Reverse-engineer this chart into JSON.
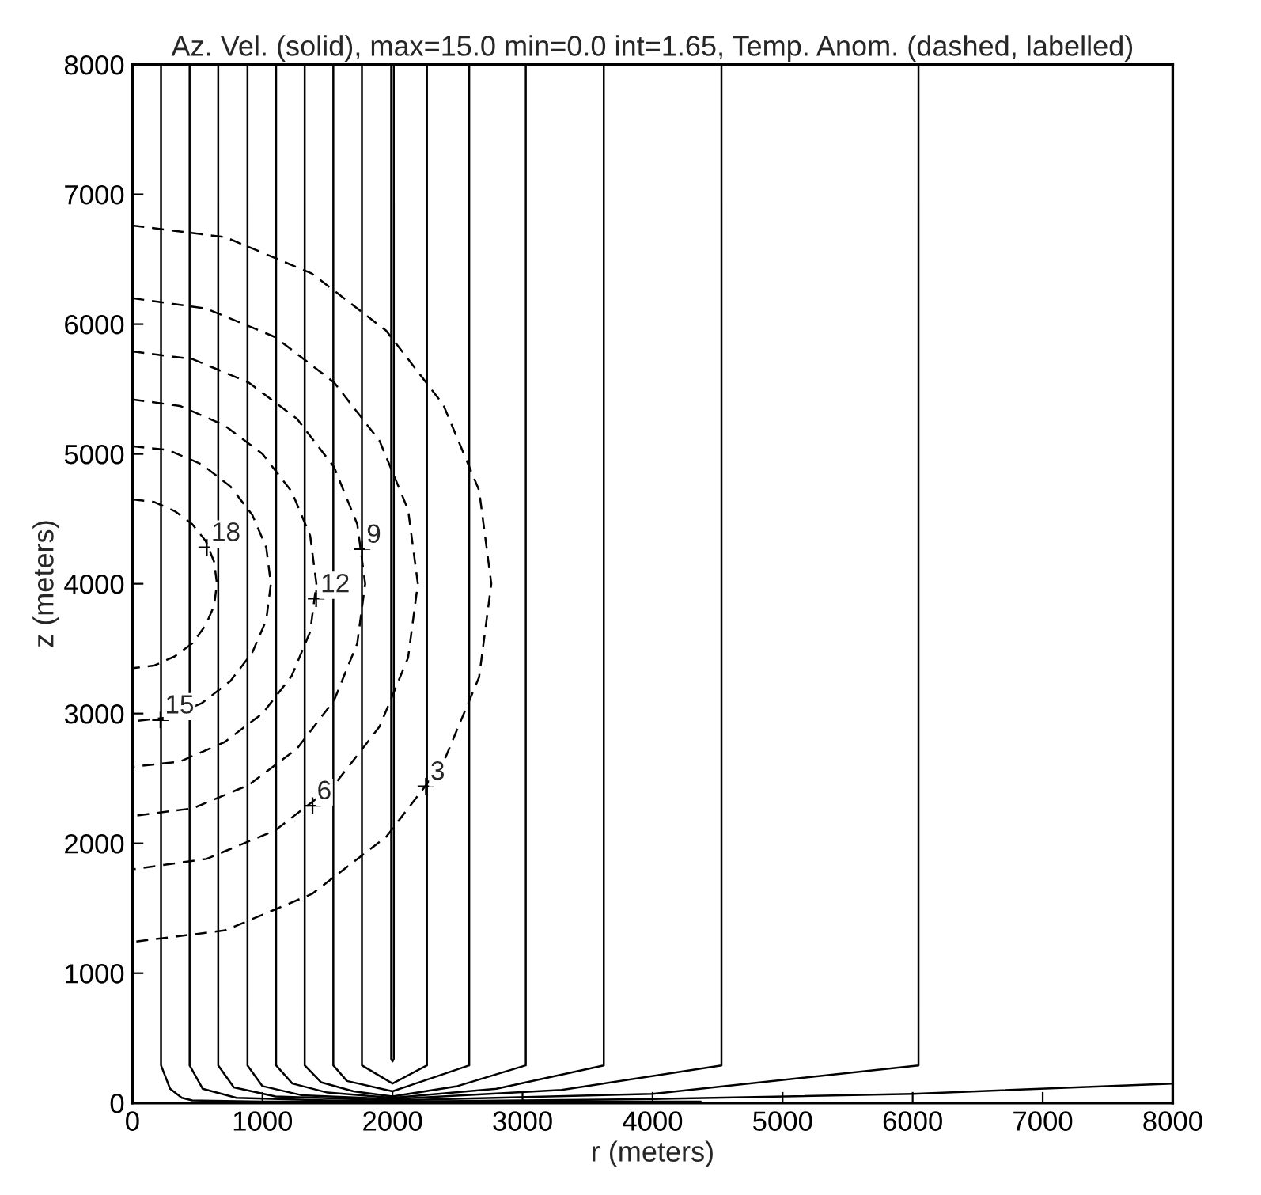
{
  "chart_data": {
    "type": "line",
    "title": "Az. Vel. (solid), max=15.0 min=0.0 int=1.65, Temp. Anom. (dashed, labelled)",
    "xlabel": "r (meters)",
    "ylabel": "z (meters)",
    "xlim": [
      0,
      8000
    ],
    "ylim": [
      0,
      8000
    ],
    "xticks": [
      0,
      1000,
      2000,
      3000,
      4000,
      5000,
      6000,
      7000,
      8000
    ],
    "yticks": [
      0,
      1000,
      2000,
      3000,
      4000,
      5000,
      6000,
      7000,
      8000
    ],
    "grid": false,
    "marker": "none",
    "series": [
      {
        "color": "#000000",
        "line_style": "solid",
        "x": [
          220,
          220,
          290,
          380,
          460,
          1000,
          2000,
          4370
        ],
        "values": [
          8000,
          290,
          110,
          40,
          20,
          10,
          10,
          10
        ]
      },
      {
        "color": "#000000",
        "line_style": "solid",
        "x": [
          440,
          440,
          540,
          800,
          1500,
          2000,
          4000,
          6000,
          8000
        ],
        "values": [
          8000,
          290,
          110,
          40,
          20,
          10,
          30,
          70,
          150
        ]
      },
      {
        "color": "#000000",
        "line_style": "solid",
        "x": [
          660,
          660,
          780,
          1100,
          2000,
          4000,
          6045,
          6045
        ],
        "values": [
          8000,
          290,
          120,
          50,
          20,
          70,
          290,
          8000
        ]
      },
      {
        "color": "#000000",
        "line_style": "solid",
        "x": [
          885,
          885,
          1000,
          1300,
          2000,
          3300,
          4530,
          4530
        ],
        "values": [
          8000,
          290,
          130,
          60,
          30,
          100,
          290,
          8000
        ]
      },
      {
        "color": "#000000",
        "line_style": "solid",
        "x": [
          1105,
          1105,
          1230,
          1500,
          2000,
          2800,
          3625,
          3625
        ],
        "values": [
          8000,
          290,
          150,
          80,
          40,
          110,
          290,
          8000
        ]
      },
      {
        "color": "#000000",
        "line_style": "solid",
        "x": [
          1325,
          1325,
          1450,
          1700,
          2000,
          2500,
          3025,
          3025
        ],
        "values": [
          8000,
          290,
          160,
          90,
          50,
          130,
          290,
          8000
        ]
      },
      {
        "color": "#000000",
        "line_style": "solid",
        "x": [
          1545,
          1545,
          1650,
          2000,
          2590,
          2590
        ],
        "values": [
          8000,
          290,
          170,
          90,
          290,
          8000
        ]
      },
      {
        "color": "#000000",
        "line_style": "solid",
        "x": [
          1765,
          1765,
          2000,
          2265,
          2265
        ],
        "values": [
          8000,
          290,
          150,
          290,
          8000
        ]
      },
      {
        "color": "#000000",
        "line_style": "solid",
        "x": [
          1990,
          1990,
          2000,
          2010,
          2010
        ],
        "values": [
          8000,
          340,
          320,
          340,
          8000
        ]
      },
      {
        "color": "#000000",
        "line_style": "dashed",
        "x": [
          0,
          168,
          325,
          460,
          563,
          628,
          650,
          628,
          563,
          460,
          325,
          168,
          0
        ],
        "values": [
          4650,
          4630,
          4560,
          4460,
          4330,
          4170,
          4000,
          3830,
          3680,
          3540,
          3440,
          3370,
          3350
        ]
      },
      {
        "color": "#000000",
        "line_style": "dashed",
        "x": [
          0,
          276,
          533,
          753,
          922,
          1029,
          1065,
          1029,
          922,
          753,
          533,
          276,
          0
        ],
        "values": [
          5060,
          5030,
          4920,
          4750,
          4530,
          4280,
          4000,
          3720,
          3470,
          3250,
          3080,
          2970,
          2940
        ]
      },
      {
        "color": "#000000",
        "line_style": "dashed",
        "x": [
          0,
          366,
          708,
          1000,
          1225,
          1367,
          1415,
          1367,
          1225,
          1000,
          708,
          366,
          0
        ],
        "values": [
          5420,
          5370,
          5220,
          5000,
          4710,
          4370,
          4000,
          3630,
          3290,
          3000,
          2780,
          2630,
          2590
        ]
      },
      {
        "color": "#000000",
        "line_style": "dashed",
        "x": [
          0,
          464,
          895,
          1266,
          1550,
          1729,
          1790,
          1729,
          1550,
          1266,
          895,
          464,
          0
        ],
        "values": [
          5790,
          5730,
          5550,
          5270,
          4900,
          4460,
          4000,
          3540,
          3100,
          2730,
          2450,
          2270,
          2210
        ]
      },
      {
        "color": "#000000",
        "line_style": "dashed",
        "x": [
          0,
          569,
          1098,
          1552,
          1901,
          2120,
          2195,
          2120,
          1901,
          1552,
          1098,
          569,
          0
        ],
        "values": [
          6200,
          6120,
          5900,
          5550,
          5100,
          4570,
          4000,
          3430,
          2900,
          2450,
          2100,
          1880,
          1800
        ]
      },
      {
        "color": "#000000",
        "line_style": "dashed",
        "x": [
          0,
          715,
          1380,
          1951,
          2390,
          2666,
          2760,
          2666,
          2390,
          1951,
          1380,
          715,
          0
        ],
        "values": [
          6760,
          6670,
          6390,
          5950,
          5380,
          4720,
          4000,
          3280,
          2620,
          2050,
          1610,
          1330,
          1240
        ]
      }
    ],
    "annotations": [
      {
        "text": "18",
        "x": 572,
        "y": 4280
      },
      {
        "text": "15",
        "x": 216,
        "y": 2950
      },
      {
        "text": "12",
        "x": 1413,
        "y": 3885
      },
      {
        "text": "9",
        "x": 1766,
        "y": 4266
      },
      {
        "text": "6",
        "x": 1385,
        "y": 2290
      },
      {
        "text": "3",
        "x": 2257,
        "y": 2440
      }
    ]
  }
}
